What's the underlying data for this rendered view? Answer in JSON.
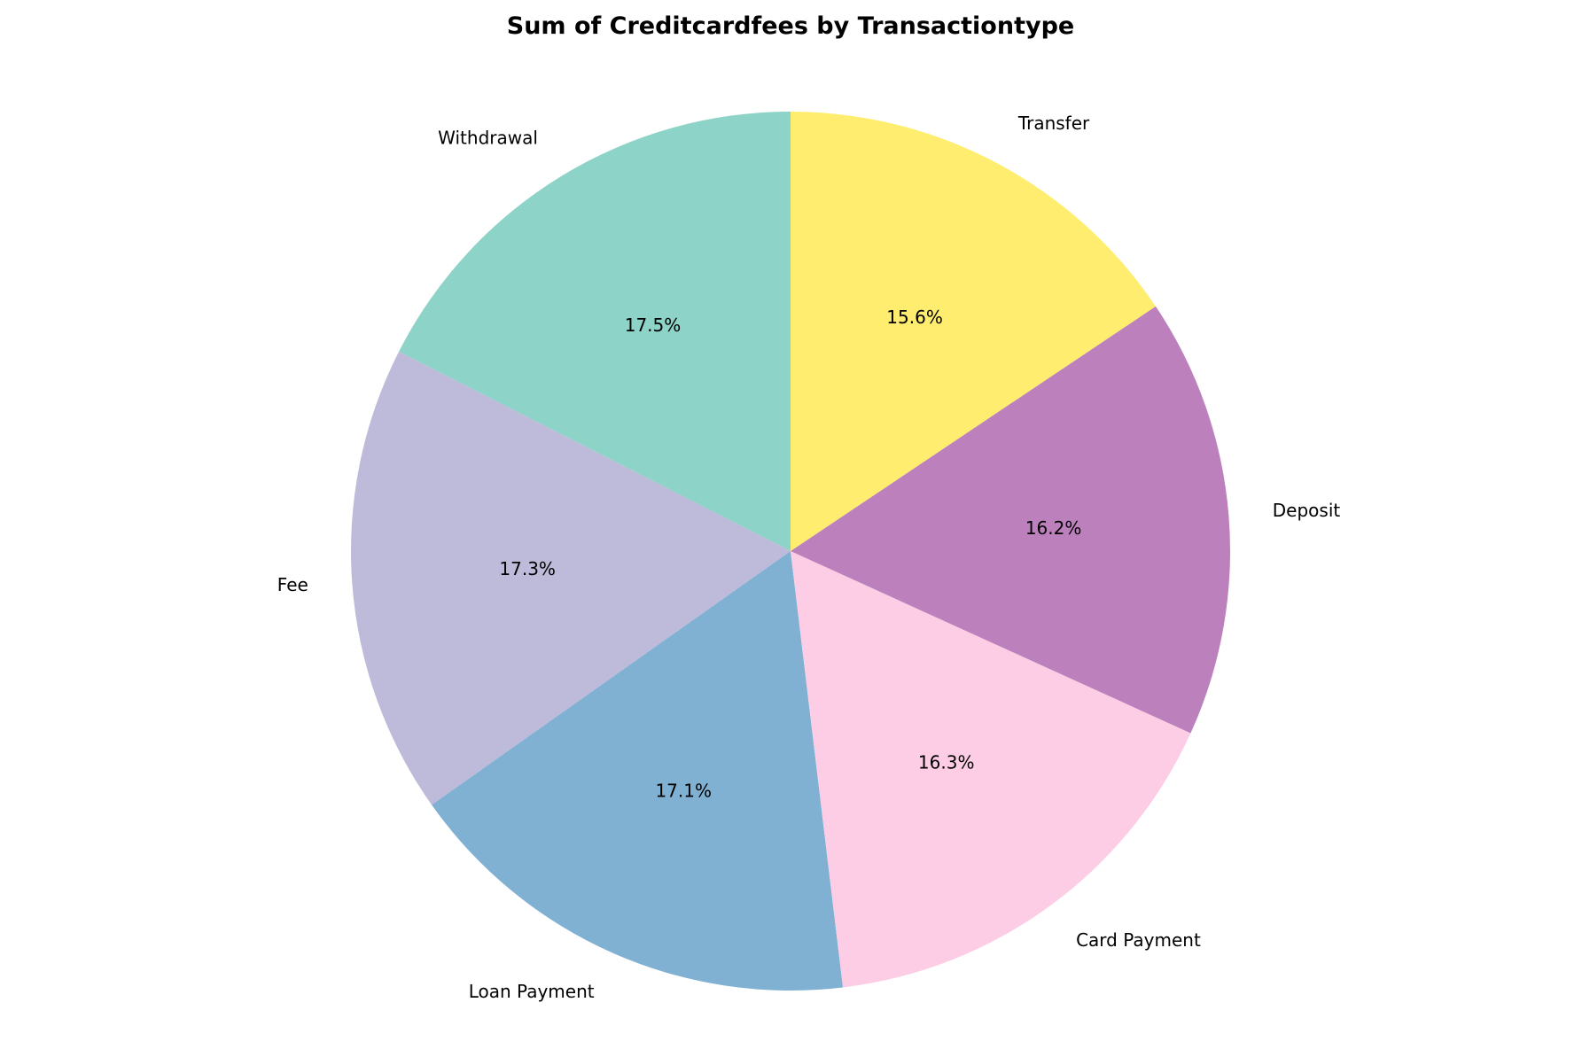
{
  "chart_data": {
    "type": "pie",
    "title": "Sum of Creditcardfees by Transactiontype",
    "start_angle_deg": 90,
    "direction": "counterclockwise",
    "slices": [
      {
        "label": "Withdrawal",
        "value": 17.5,
        "pct_label": "17.5%",
        "color": "#8dd3c7"
      },
      {
        "label": "Fee",
        "value": 17.3,
        "pct_label": "17.3%",
        "color": "#bebada"
      },
      {
        "label": "Loan Payment",
        "value": 17.1,
        "pct_label": "17.1%",
        "color": "#80b1d3"
      },
      {
        "label": "Card Payment",
        "value": 16.3,
        "pct_label": "16.3%",
        "color": "#fccde5"
      },
      {
        "label": "Deposit",
        "value": 16.2,
        "pct_label": "16.2%",
        "color": "#bc80bd"
      },
      {
        "label": "Transfer",
        "value": 15.6,
        "pct_label": "15.6%",
        "color": "#ffed6f"
      }
    ]
  }
}
